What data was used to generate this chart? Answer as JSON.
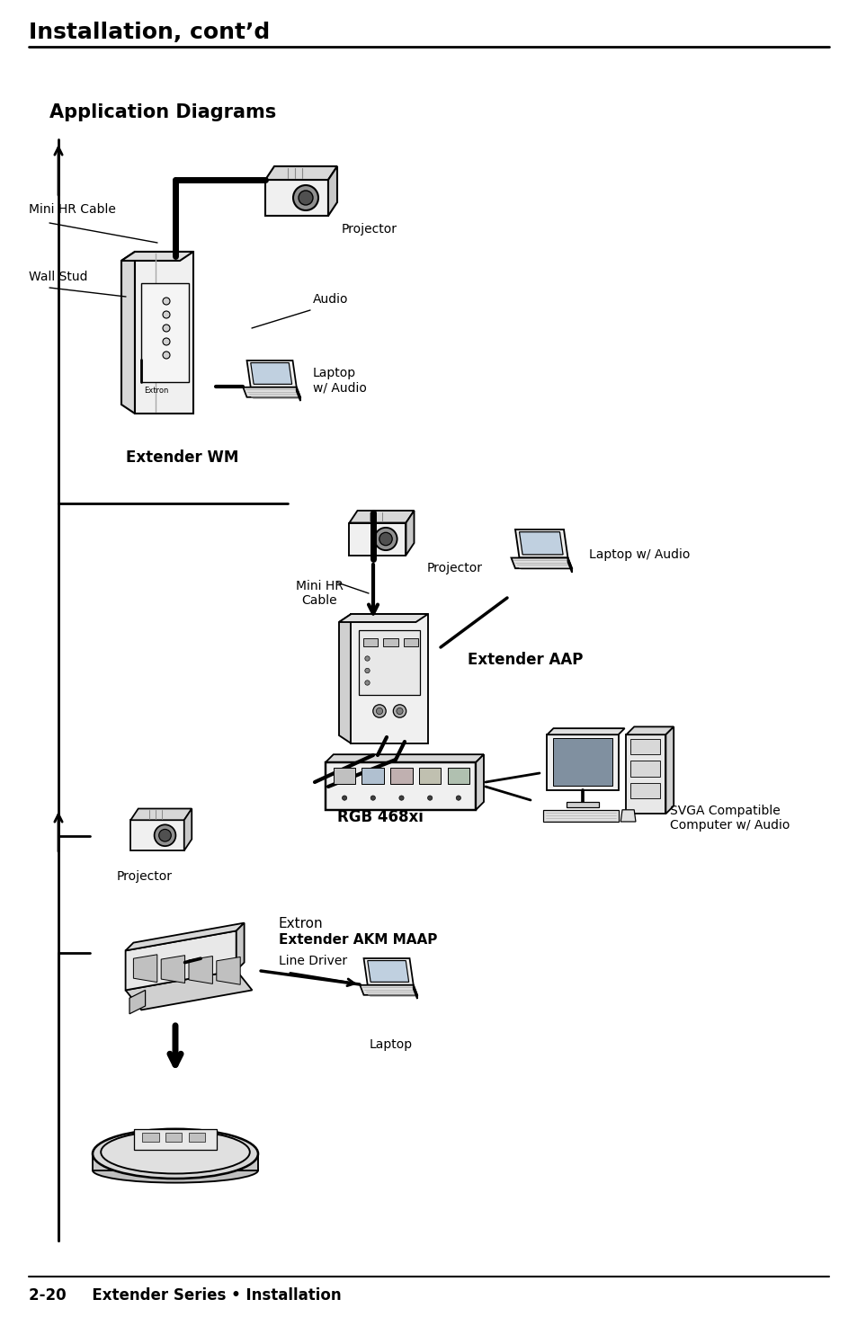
{
  "title": "Installation, cont’d",
  "subtitle": "Application Diagrams",
  "page_footer": "2-20     Extender Series • Installation",
  "background_color": "#ffffff",
  "labels": {
    "mini_hr_cable_1": "Mini HR Cable",
    "wall_stud": "Wall Stud",
    "audio": "Audio",
    "laptop_w_audio_1": "Laptop\nw/ Audio",
    "extender_wm": "Extender WM",
    "projector_1": "Projector",
    "mini_hr_cable_2": "Mini HR\nCable",
    "projector_2": "Projector",
    "laptop_w_audio_2": "Laptop w/ Audio",
    "extender_aap": "Extender AAP",
    "rgb_468xi": "RGB 468xi",
    "projector_3": "Projector",
    "extron_akm_line1": "Extron",
    "extron_akm_line2": "Extender AKM MAAP",
    "line_driver": "Line Driver",
    "svga_computer": "SVGA Compatible\nComputer w/ Audio",
    "laptop_3": "Laptop"
  }
}
